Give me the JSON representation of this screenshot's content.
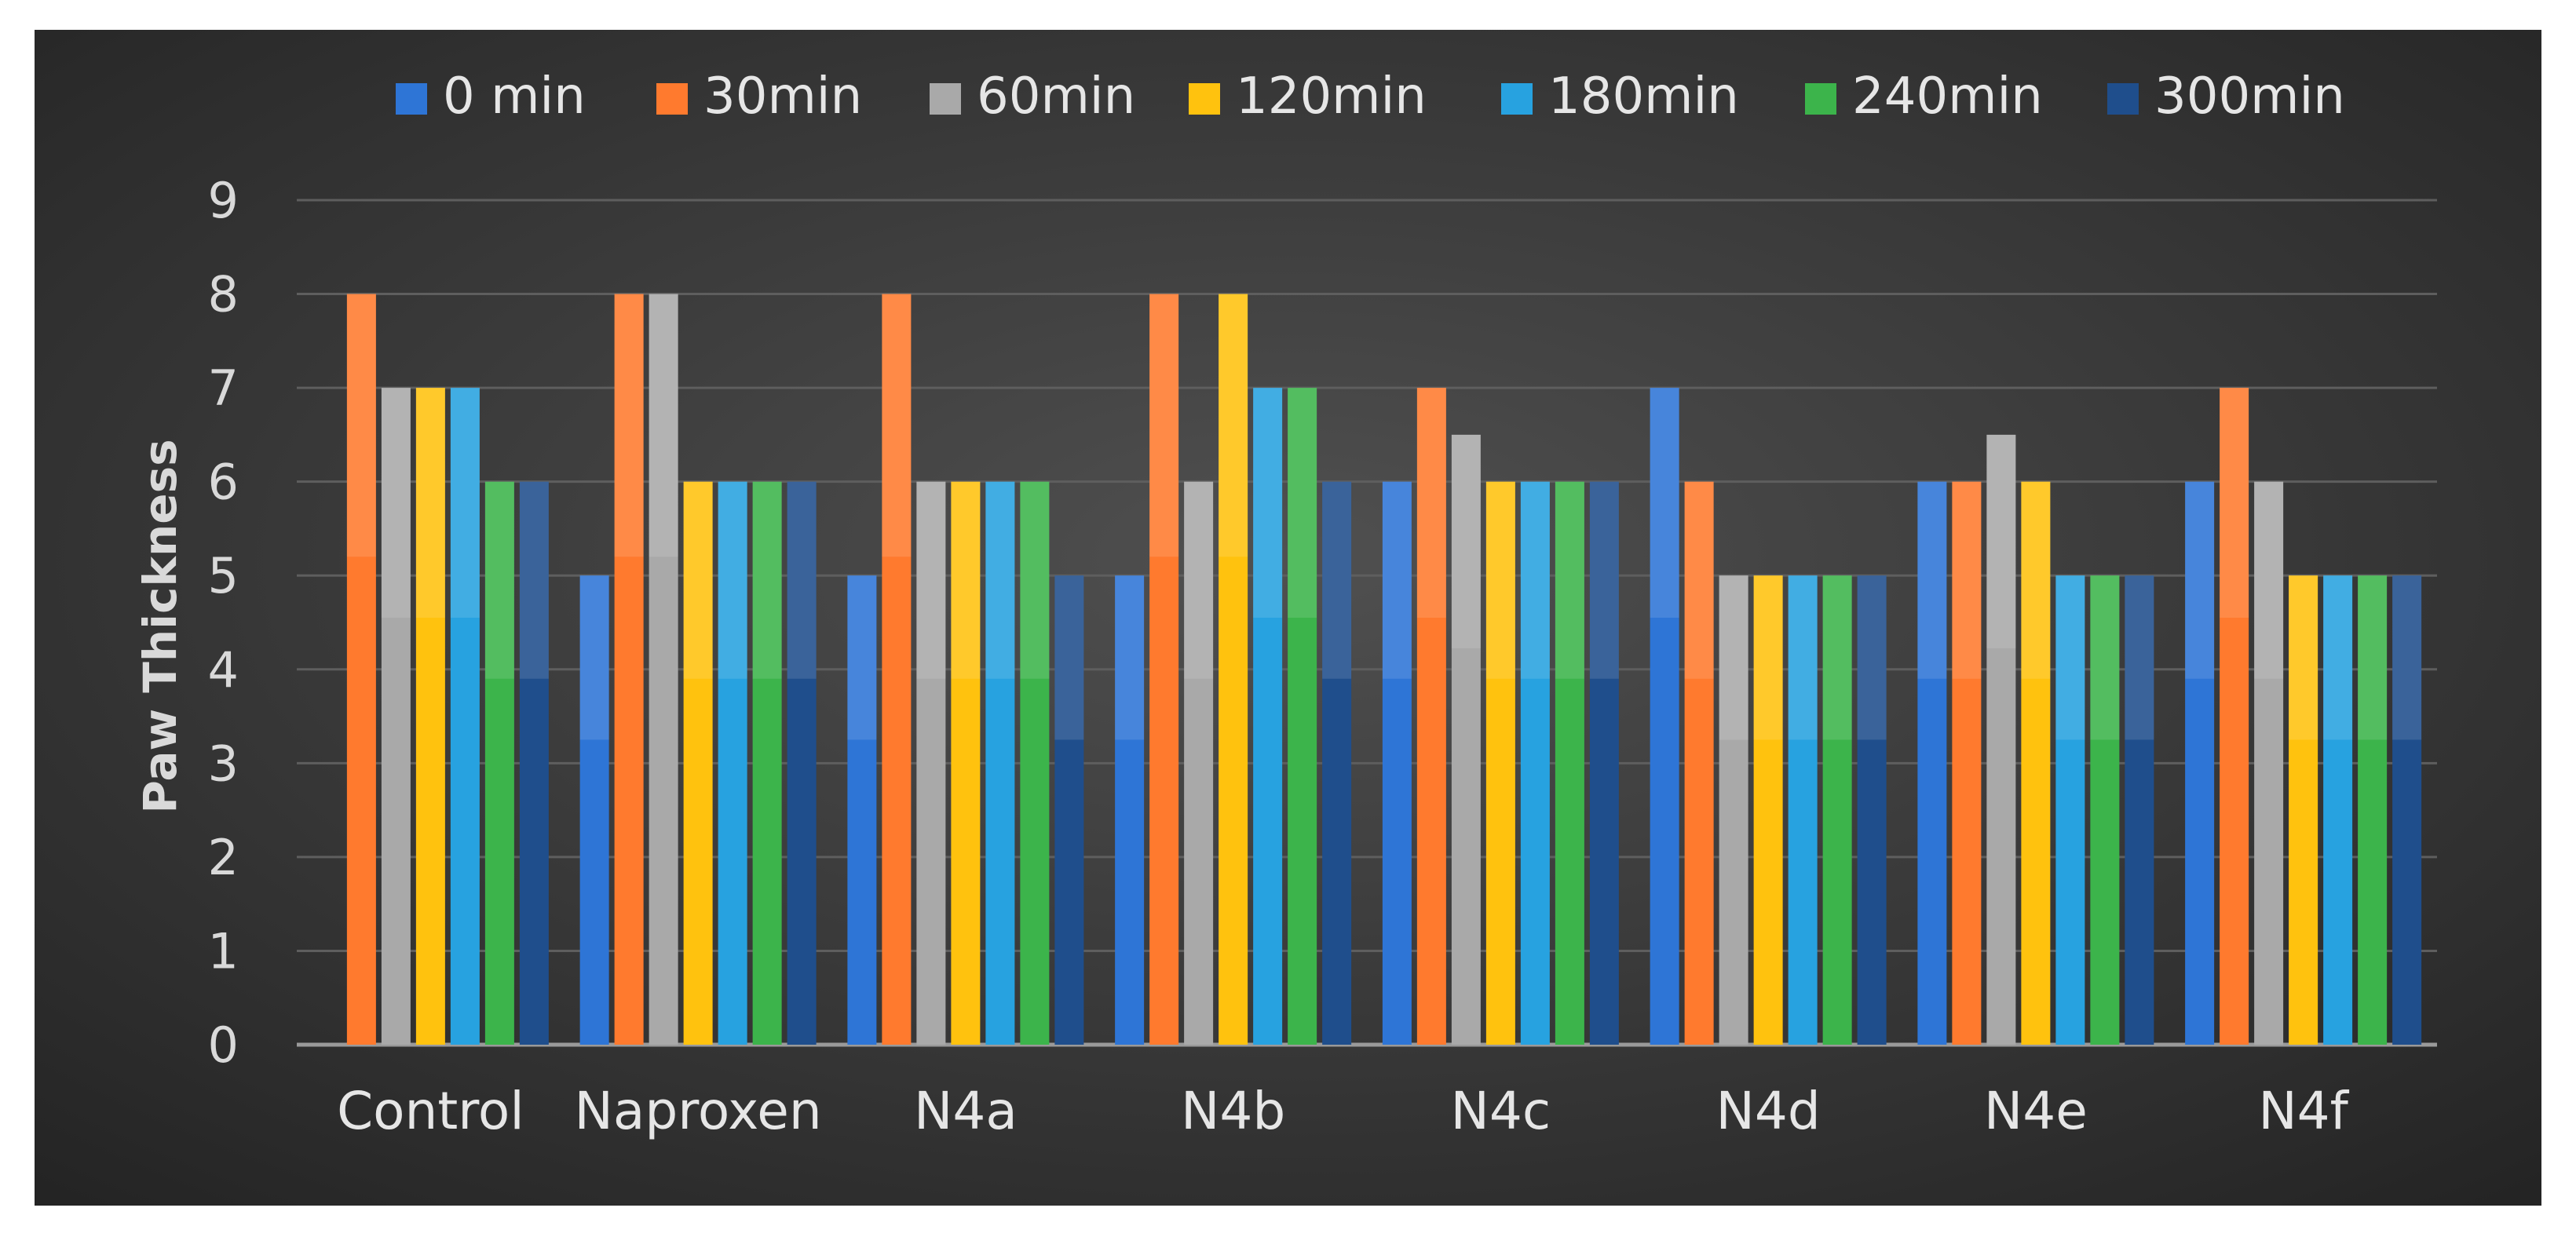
{
  "chart_data": {
    "type": "bar",
    "title": "",
    "xlabel": "",
    "ylabel": "Paw Thickness",
    "ylim": [
      0,
      9
    ],
    "yticks": [
      "0",
      "1",
      "2",
      "3",
      "4",
      "5",
      "6",
      "7",
      "8",
      "9"
    ],
    "grid": true,
    "legend_position": "top",
    "categories": [
      "Control",
      "Naproxen",
      "N4a",
      "N4b",
      "N4c",
      "N4d",
      "N4e",
      "N4f"
    ],
    "series": [
      {
        "name": "0 min",
        "color": "#2E75D6",
        "values": [
          0,
          5,
          5,
          5,
          6,
          7,
          6,
          6
        ]
      },
      {
        "name": "30min",
        "color": "#FF7A2E",
        "values": [
          8,
          8,
          8,
          8,
          7,
          6,
          6,
          7
        ]
      },
      {
        "name": "60min",
        "color": "#A9A9A9",
        "values": [
          7,
          8,
          6,
          6,
          6.5,
          5,
          6.5,
          6
        ]
      },
      {
        "name": "120min",
        "color": "#FFC20E",
        "values": [
          7,
          6,
          6,
          8,
          6,
          5,
          6,
          5
        ]
      },
      {
        "name": "180min",
        "color": "#27A2E0",
        "values": [
          7,
          6,
          6,
          7,
          6,
          5,
          5,
          5
        ]
      },
      {
        "name": "240min",
        "color": "#3CB44B",
        "values": [
          6,
          6,
          6,
          7,
          6,
          5,
          5,
          5
        ]
      },
      {
        "name": "300min",
        "color": "#1F4E8C",
        "values": [
          6,
          6,
          5,
          6,
          6,
          5,
          5,
          5
        ]
      }
    ]
  }
}
